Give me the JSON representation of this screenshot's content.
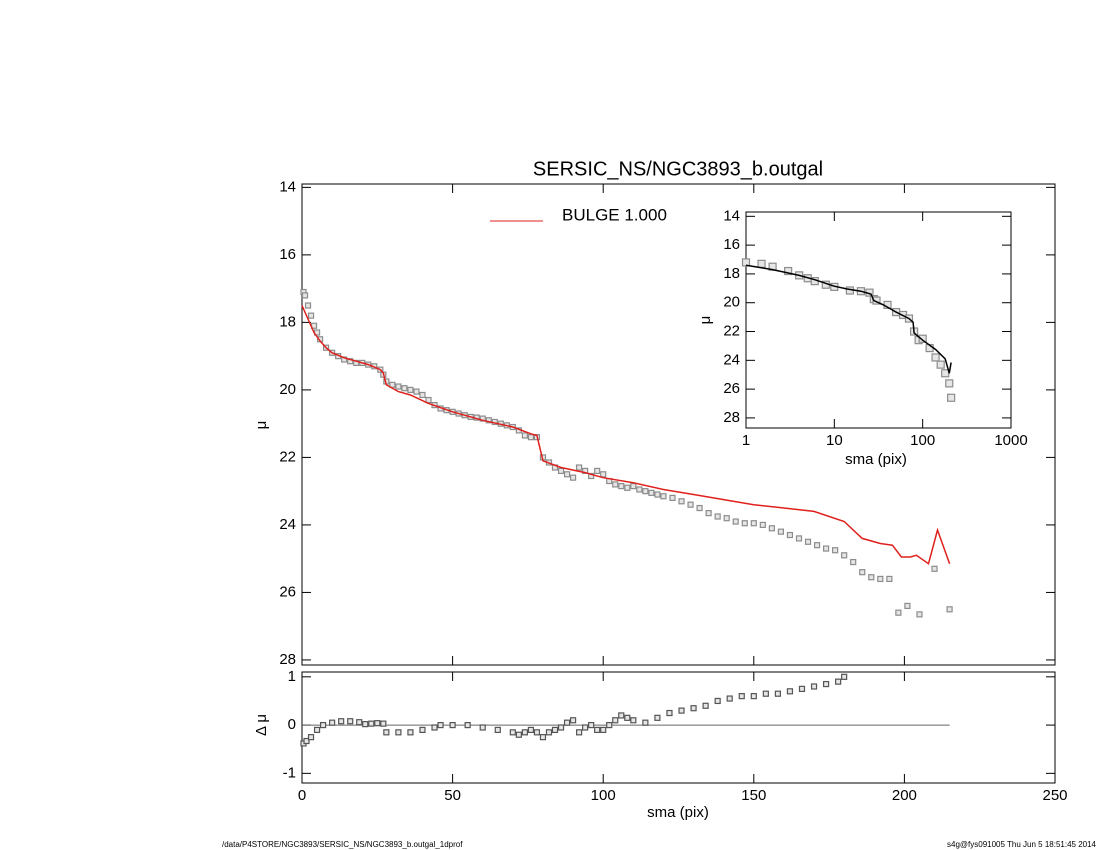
{
  "chart_data": [
    {
      "type": "scatter",
      "title": "SERSIC_NS/NGC3893_b.outgal",
      "ylabel": "μ",
      "xlim": [
        0,
        250
      ],
      "ylim": [
        13.9,
        28.15
      ],
      "yaxis_inverted": true,
      "xticks": [
        0,
        50,
        100,
        150,
        200,
        250
      ],
      "xtick_labels": false,
      "yticks": [
        14,
        16,
        18,
        20,
        22,
        24,
        26,
        28
      ],
      "legend": "top",
      "series": [
        {
          "type": "scatter",
          "color": "#8c8c8c",
          "x": [
            0.5,
            1,
            2,
            3,
            4,
            5,
            6,
            8,
            10,
            12,
            14,
            16,
            18,
            20,
            22,
            24,
            26,
            27,
            28,
            30,
            32,
            34,
            36,
            38,
            40,
            42,
            44,
            46,
            48,
            50,
            52,
            54,
            56,
            58,
            60,
            62,
            64,
            66,
            68,
            70,
            72,
            74,
            76,
            78,
            80,
            82,
            84,
            86,
            88,
            90,
            92,
            94,
            96,
            98,
            100,
            102,
            104,
            106,
            108,
            110,
            112,
            114,
            116,
            118,
            120,
            123,
            126,
            129,
            132,
            135,
            138,
            141,
            144,
            147,
            150,
            153,
            156,
            159,
            162,
            165,
            168,
            171,
            174,
            177,
            180,
            183,
            186,
            189,
            192,
            195,
            198,
            201,
            205,
            210,
            215
          ],
          "values": [
            17.1,
            17.2,
            17.5,
            17.8,
            18.1,
            18.3,
            18.5,
            18.75,
            18.9,
            19.0,
            19.1,
            19.15,
            19.2,
            19.2,
            19.25,
            19.3,
            19.4,
            19.55,
            19.75,
            19.85,
            19.9,
            19.95,
            20.0,
            20.05,
            20.15,
            20.3,
            20.45,
            20.55,
            20.6,
            20.65,
            20.7,
            20.75,
            20.8,
            20.82,
            20.85,
            20.9,
            20.95,
            21.0,
            21.05,
            21.1,
            21.2,
            21.35,
            21.4,
            21.4,
            22.0,
            22.15,
            22.3,
            22.4,
            22.5,
            22.6,
            22.3,
            22.4,
            22.55,
            22.4,
            22.5,
            22.7,
            22.8,
            22.85,
            22.9,
            22.85,
            22.95,
            23.0,
            23.05,
            23.1,
            23.15,
            23.2,
            23.3,
            23.4,
            23.5,
            23.65,
            23.75,
            23.8,
            23.9,
            23.95,
            23.95,
            24.0,
            24.1,
            24.2,
            24.3,
            24.4,
            24.5,
            24.6,
            24.7,
            24.75,
            24.9,
            25.1,
            25.4,
            25.55,
            25.6,
            25.6,
            26.6,
            26.4,
            26.65,
            25.3,
            26.5
          ]
        },
        {
          "type": "line",
          "name": "BULGE  1.000",
          "color": "#e0201c",
          "x": [
            0,
            2,
            4,
            6,
            8,
            10,
            14,
            18,
            22,
            26,
            27,
            28,
            32,
            36,
            42,
            50,
            60,
            70,
            76,
            78,
            80,
            86,
            94,
            100,
            110,
            120,
            130,
            140,
            150,
            160,
            170,
            180,
            186,
            192,
            196,
            199,
            202,
            204,
            208,
            211,
            215
          ],
          "values": [
            17.5,
            17.9,
            18.3,
            18.55,
            18.75,
            18.9,
            19.05,
            19.15,
            19.25,
            19.4,
            19.5,
            19.85,
            20.05,
            20.15,
            20.4,
            20.65,
            20.9,
            21.1,
            21.3,
            21.35,
            22.1,
            22.3,
            22.45,
            22.6,
            22.75,
            22.95,
            23.1,
            23.25,
            23.4,
            23.5,
            23.6,
            23.9,
            24.4,
            24.55,
            24.6,
            24.95,
            24.95,
            24.9,
            25.15,
            24.15,
            25.15
          ]
        }
      ]
    },
    {
      "type": "scatter",
      "ylabel": "Δ μ",
      "xlabel": "sma (pix)",
      "xlim": [
        0,
        250
      ],
      "ylim": [
        -1.2,
        1.1
      ],
      "xticks": [
        0,
        50,
        100,
        150,
        200,
        250
      ],
      "yticks": [
        -1,
        0,
        1
      ],
      "reference_line": {
        "x": [
          0,
          215
        ],
        "values": [
          0,
          0
        ]
      },
      "series": [
        {
          "type": "scatter",
          "color": "#555555",
          "x": [
            0.5,
            1.5,
            3,
            5,
            7,
            10,
            13,
            16,
            19,
            21,
            23,
            25,
            27,
            28,
            32,
            36,
            40,
            44,
            46,
            50,
            55,
            60,
            65,
            70,
            72,
            74,
            76,
            78,
            80,
            82,
            84,
            86,
            88,
            90,
            92,
            94,
            96,
            98,
            100,
            102,
            104,
            106,
            108,
            110,
            114,
            118,
            122,
            126,
            130,
            134,
            138,
            142,
            146,
            150,
            154,
            158,
            162,
            166,
            170,
            174,
            178,
            180
          ],
          "values": [
            -0.38,
            -0.33,
            -0.25,
            -0.1,
            0.0,
            0.05,
            0.08,
            0.08,
            0.06,
            0.02,
            0.03,
            0.04,
            0.03,
            -0.15,
            -0.15,
            -0.15,
            -0.1,
            -0.05,
            0.0,
            0.0,
            0.0,
            -0.05,
            -0.1,
            -0.15,
            -0.2,
            -0.15,
            -0.1,
            -0.15,
            -0.25,
            -0.15,
            -0.1,
            -0.05,
            0.05,
            0.1,
            -0.15,
            -0.05,
            0.0,
            -0.1,
            -0.1,
            0.0,
            0.1,
            0.2,
            0.15,
            0.1,
            0.05,
            0.15,
            0.25,
            0.3,
            0.35,
            0.4,
            0.5,
            0.55,
            0.6,
            0.6,
            0.65,
            0.65,
            0.7,
            0.75,
            0.8,
            0.85,
            0.9,
            1.0
          ]
        }
      ]
    },
    {
      "type": "scatter",
      "ylabel": "μ",
      "xlabel": "sma (pix)",
      "xscale": "log",
      "xlim": [
        1,
        1000
      ],
      "ylim": [
        13.7,
        28.7
      ],
      "yaxis_inverted": true,
      "xticks": [
        1,
        10,
        100,
        1000
      ],
      "yticks": [
        14,
        16,
        18,
        20,
        22,
        24,
        26,
        28
      ],
      "series": [
        {
          "type": "scatter",
          "color": "#8c8c8c",
          "x": [
            1,
            1.5,
            2,
            3,
            4,
            5,
            6,
            8,
            10,
            15,
            20,
            25,
            28,
            30,
            40,
            50,
            60,
            70,
            80,
            90,
            100,
            120,
            140,
            160,
            180,
            200,
            210
          ],
          "values": [
            17.2,
            17.3,
            17.5,
            17.8,
            18.1,
            18.3,
            18.5,
            18.75,
            18.9,
            19.15,
            19.2,
            19.3,
            19.75,
            19.85,
            20.15,
            20.65,
            20.85,
            21.1,
            22.0,
            22.6,
            22.5,
            23.15,
            23.8,
            24.3,
            24.9,
            25.6,
            26.6
          ]
        },
        {
          "type": "line",
          "color": "#000000",
          "x": [
            1,
            2,
            4,
            6,
            10,
            14,
            20,
            26,
            28,
            36,
            50,
            70,
            78,
            80,
            100,
            140,
            180,
            200,
            210
          ],
          "values": [
            17.4,
            17.7,
            18.1,
            18.4,
            18.85,
            19.05,
            19.2,
            19.4,
            19.85,
            20.15,
            20.65,
            21.1,
            21.35,
            22.1,
            22.6,
            23.25,
            23.9,
            24.9,
            24.15
          ]
        }
      ]
    }
  ],
  "footer": {
    "left": "/data/P4STORE/NGC3893/SERSIC_NS/NGC3893_b.outgal_1dprof",
    "right": "s4g@fys091005  Thu Jun  5 18:51:45 2014"
  }
}
